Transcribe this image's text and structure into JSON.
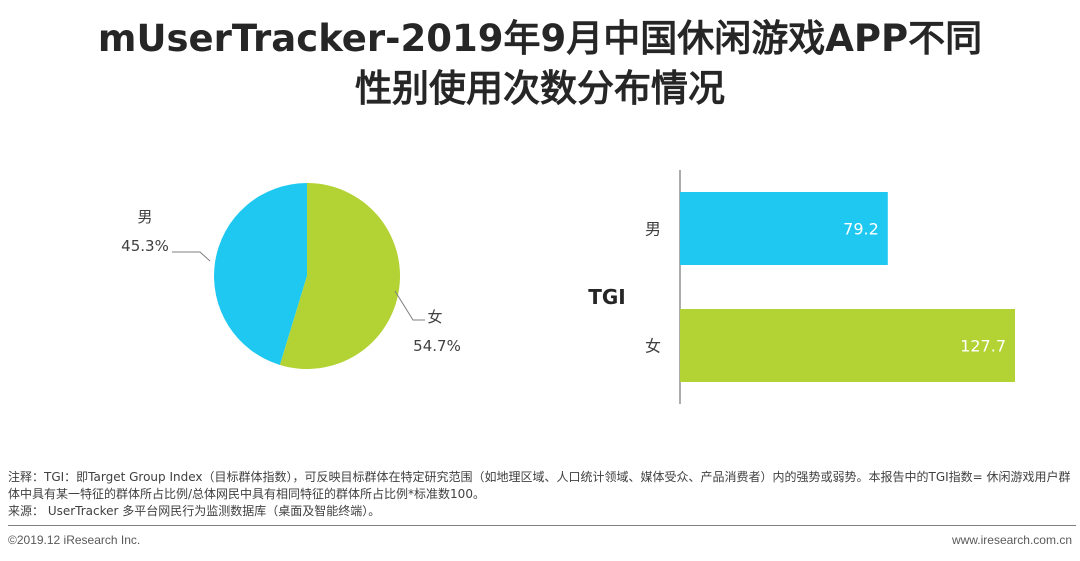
{
  "header": {
    "title_line1": "mUserTracker-2019年9月中国休闲游戏APP不同",
    "title_line2": "性别使用次数分布情况"
  },
  "colors": {
    "male": "#1fc8f0",
    "female": "#b3d334",
    "text": "#404040"
  },
  "chart_data": [
    {
      "type": "pie",
      "slices": [
        {
          "label": "男",
          "value": 45.3,
          "display": "45.3%",
          "color": "#1fc8f0"
        },
        {
          "label": "女",
          "value": 54.7,
          "display": "54.7%",
          "color": "#b3d334"
        }
      ]
    },
    {
      "type": "bar",
      "orientation": "horizontal",
      "axis_label": "TGI",
      "categories": [
        "男",
        "女"
      ],
      "values": [
        79.2,
        127.7
      ],
      "value_labels": [
        "79.2",
        "127.7"
      ],
      "colors": [
        "#1fc8f0",
        "#b3d334"
      ]
    }
  ],
  "notes": {
    "line1": "注释：TGI：即Target Group Index（目标群体指数），可反映目标群体在特定研究范围（如地理区域、人口统计领域、媒体受众、产品消费者）内的强势或弱势。本报告中的TGI指数= 休闲游戏用户群体中具有某一特征的群体所占比例/总体网民中具有相同特征的群体所占比例*标准数100。",
    "line2": "来源： UserTracker 多平台网民行为监测数据库（桌面及智能终端）。"
  },
  "footer": {
    "copyright": "©2019.12 iResearch Inc.",
    "website": "www.iresearch.com.cn"
  }
}
